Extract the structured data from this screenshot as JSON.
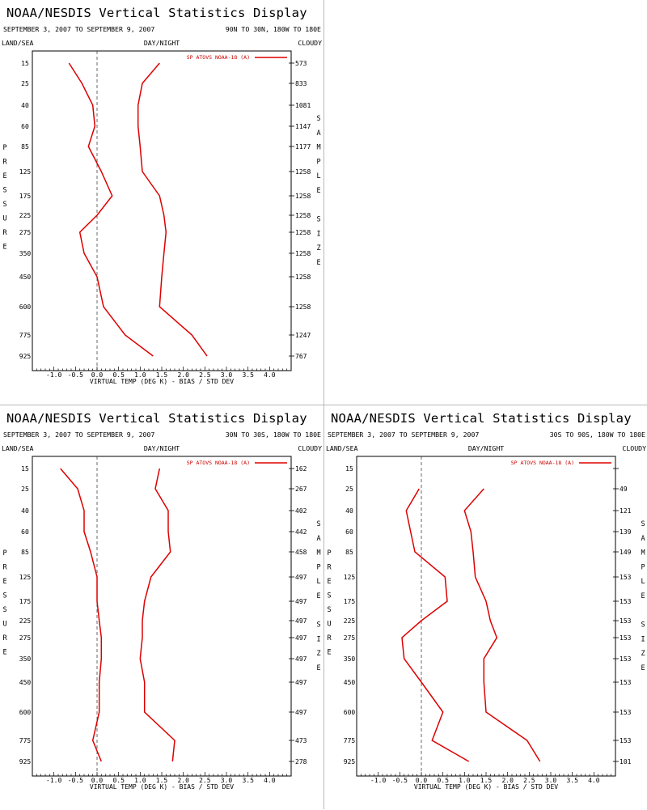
{
  "colors": {
    "series": "#dd0000",
    "axis": "#000000",
    "zero_line": "#444444"
  },
  "chart_data": [
    {
      "type": "line",
      "title": "NOAA/NESDIS Vertical Statistics Display",
      "date_range": "SEPTEMBER 3, 2007 TO SEPTEMBER 9, 2007",
      "region": "90N TO 30N, 180W TO 180E",
      "left_label": "LAND/SEA",
      "center_label": "DAY/NIGHT",
      "right_label": "CLOUDY",
      "ylabel": "PRESSURE",
      "y2label": "SAMPLE SIZE",
      "xlabel": "VIRTUAL TEMP (DEG K) - BIAS / STD DEV",
      "xlim": [
        -1.5,
        4.5
      ],
      "xticks": [
        "-1.0",
        "-0.5",
        "0.0",
        "0.5",
        "1.0",
        "1.5",
        "2.0",
        "2.5",
        "3.0",
        "3.5",
        "4.0"
      ],
      "pressure_levels": [
        15,
        25,
        40,
        60,
        85,
        125,
        175,
        225,
        275,
        350,
        450,
        600,
        775,
        925
      ],
      "legend": "SP ATOVS NOAA-18 (A)",
      "sample_size": [
        573,
        833,
        1081,
        1147,
        1177,
        1258,
        1258,
        1258,
        1258,
        1258,
        1258,
        1258,
        1247,
        767
      ],
      "series": [
        {
          "name": "bias",
          "pressure": [
            15,
            25,
            40,
            60,
            85,
            125,
            175,
            225,
            275,
            350,
            450,
            600,
            775,
            925
          ],
          "values": [
            -0.65,
            -0.35,
            -0.1,
            -0.05,
            -0.2,
            0.1,
            0.35,
            0.0,
            -0.4,
            -0.3,
            0.0,
            0.15,
            0.65,
            1.3
          ]
        },
        {
          "name": "std_dev",
          "pressure": [
            15,
            25,
            40,
            60,
            85,
            125,
            175,
            225,
            275,
            350,
            450,
            600,
            775,
            925
          ],
          "values": [
            1.45,
            1.05,
            0.95,
            0.95,
            1.0,
            1.05,
            1.45,
            1.55,
            1.6,
            1.55,
            1.5,
            1.45,
            2.2,
            2.55
          ]
        }
      ]
    },
    {
      "type": "line",
      "title": "NOAA/NESDIS Vertical Statistics Display",
      "date_range": "SEPTEMBER 3, 2007 TO SEPTEMBER 9, 2007",
      "region": "30N TO 30S, 180W TO 180E",
      "left_label": "LAND/SEA",
      "center_label": "DAY/NIGHT",
      "right_label": "CLOUDY",
      "ylabel": "PRESSURE",
      "y2label": "SAMPLE SIZE",
      "xlabel": "VIRTUAL TEMP (DEG K) - BIAS / STD DEV",
      "xlim": [
        -1.5,
        4.5
      ],
      "xticks": [
        "-1.0",
        "-0.5",
        "0.0",
        "0.5",
        "1.0",
        "1.5",
        "2.0",
        "2.5",
        "3.0",
        "3.5",
        "4.0"
      ],
      "pressure_levels": [
        15,
        25,
        40,
        60,
        85,
        125,
        175,
        225,
        275,
        350,
        450,
        600,
        775,
        925
      ],
      "legend": "SP ATOVS NOAA-18 (A)",
      "sample_size": [
        162,
        267,
        402,
        442,
        458,
        497,
        497,
        497,
        497,
        497,
        497,
        497,
        473,
        278
      ],
      "series": [
        {
          "name": "bias",
          "pressure": [
            15,
            25,
            40,
            60,
            85,
            125,
            175,
            225,
            275,
            350,
            450,
            600,
            775,
            925
          ],
          "values": [
            -0.85,
            -0.45,
            -0.3,
            -0.3,
            -0.15,
            0.0,
            0.0,
            0.05,
            0.1,
            0.1,
            0.05,
            0.05,
            -0.1,
            0.1
          ]
        },
        {
          "name": "std_dev",
          "pressure": [
            15,
            25,
            40,
            60,
            85,
            125,
            175,
            225,
            275,
            350,
            450,
            600,
            775,
            925
          ],
          "values": [
            1.45,
            1.35,
            1.65,
            1.65,
            1.7,
            1.25,
            1.1,
            1.05,
            1.05,
            1.0,
            1.1,
            1.1,
            1.8,
            1.75
          ]
        }
      ]
    },
    {
      "type": "line",
      "title": "NOAA/NESDIS Vertical Statistics Display",
      "date_range": "SEPTEMBER 3, 2007 TO SEPTEMBER 9, 2007",
      "region": "30S TO 90S, 180W TO 180E",
      "left_label": "LAND/SEA",
      "center_label": "DAY/NIGHT",
      "right_label": "CLOUDY",
      "ylabel": "PRESSURE",
      "y2label": "SAMPLE SIZE",
      "xlabel": "VIRTUAL TEMP (DEG K) - BIAS / STD DEV",
      "xlim": [
        -1.5,
        4.5
      ],
      "xticks": [
        "-1.0",
        "-0.5",
        "0.0",
        "0.5",
        "1.0",
        "1.5",
        "2.0",
        "2.5",
        "3.0",
        "3.5",
        "4.0"
      ],
      "pressure_levels": [
        15,
        25,
        40,
        60,
        85,
        125,
        175,
        225,
        275,
        350,
        450,
        600,
        775,
        925
      ],
      "legend": "SP ATOVS NOAA-18 (A)",
      "sample_size": [
        null,
        49,
        121,
        139,
        149,
        153,
        153,
        153,
        153,
        153,
        153,
        153,
        153,
        101
      ],
      "series": [
        {
          "name": "bias",
          "pressure": [
            25,
            40,
            60,
            85,
            125,
            175,
            225,
            275,
            350,
            450,
            600,
            775,
            925
          ],
          "values": [
            -0.05,
            -0.35,
            -0.25,
            -0.15,
            0.55,
            0.6,
            0.0,
            -0.45,
            -0.4,
            0.0,
            0.5,
            0.25,
            1.1
          ]
        },
        {
          "name": "std_dev",
          "pressure": [
            25,
            40,
            60,
            85,
            125,
            175,
            225,
            275,
            350,
            450,
            600,
            775,
            925
          ],
          "values": [
            1.45,
            1.0,
            1.15,
            1.2,
            1.25,
            1.5,
            1.6,
            1.75,
            1.45,
            1.45,
            1.5,
            2.45,
            2.75
          ]
        }
      ]
    }
  ]
}
